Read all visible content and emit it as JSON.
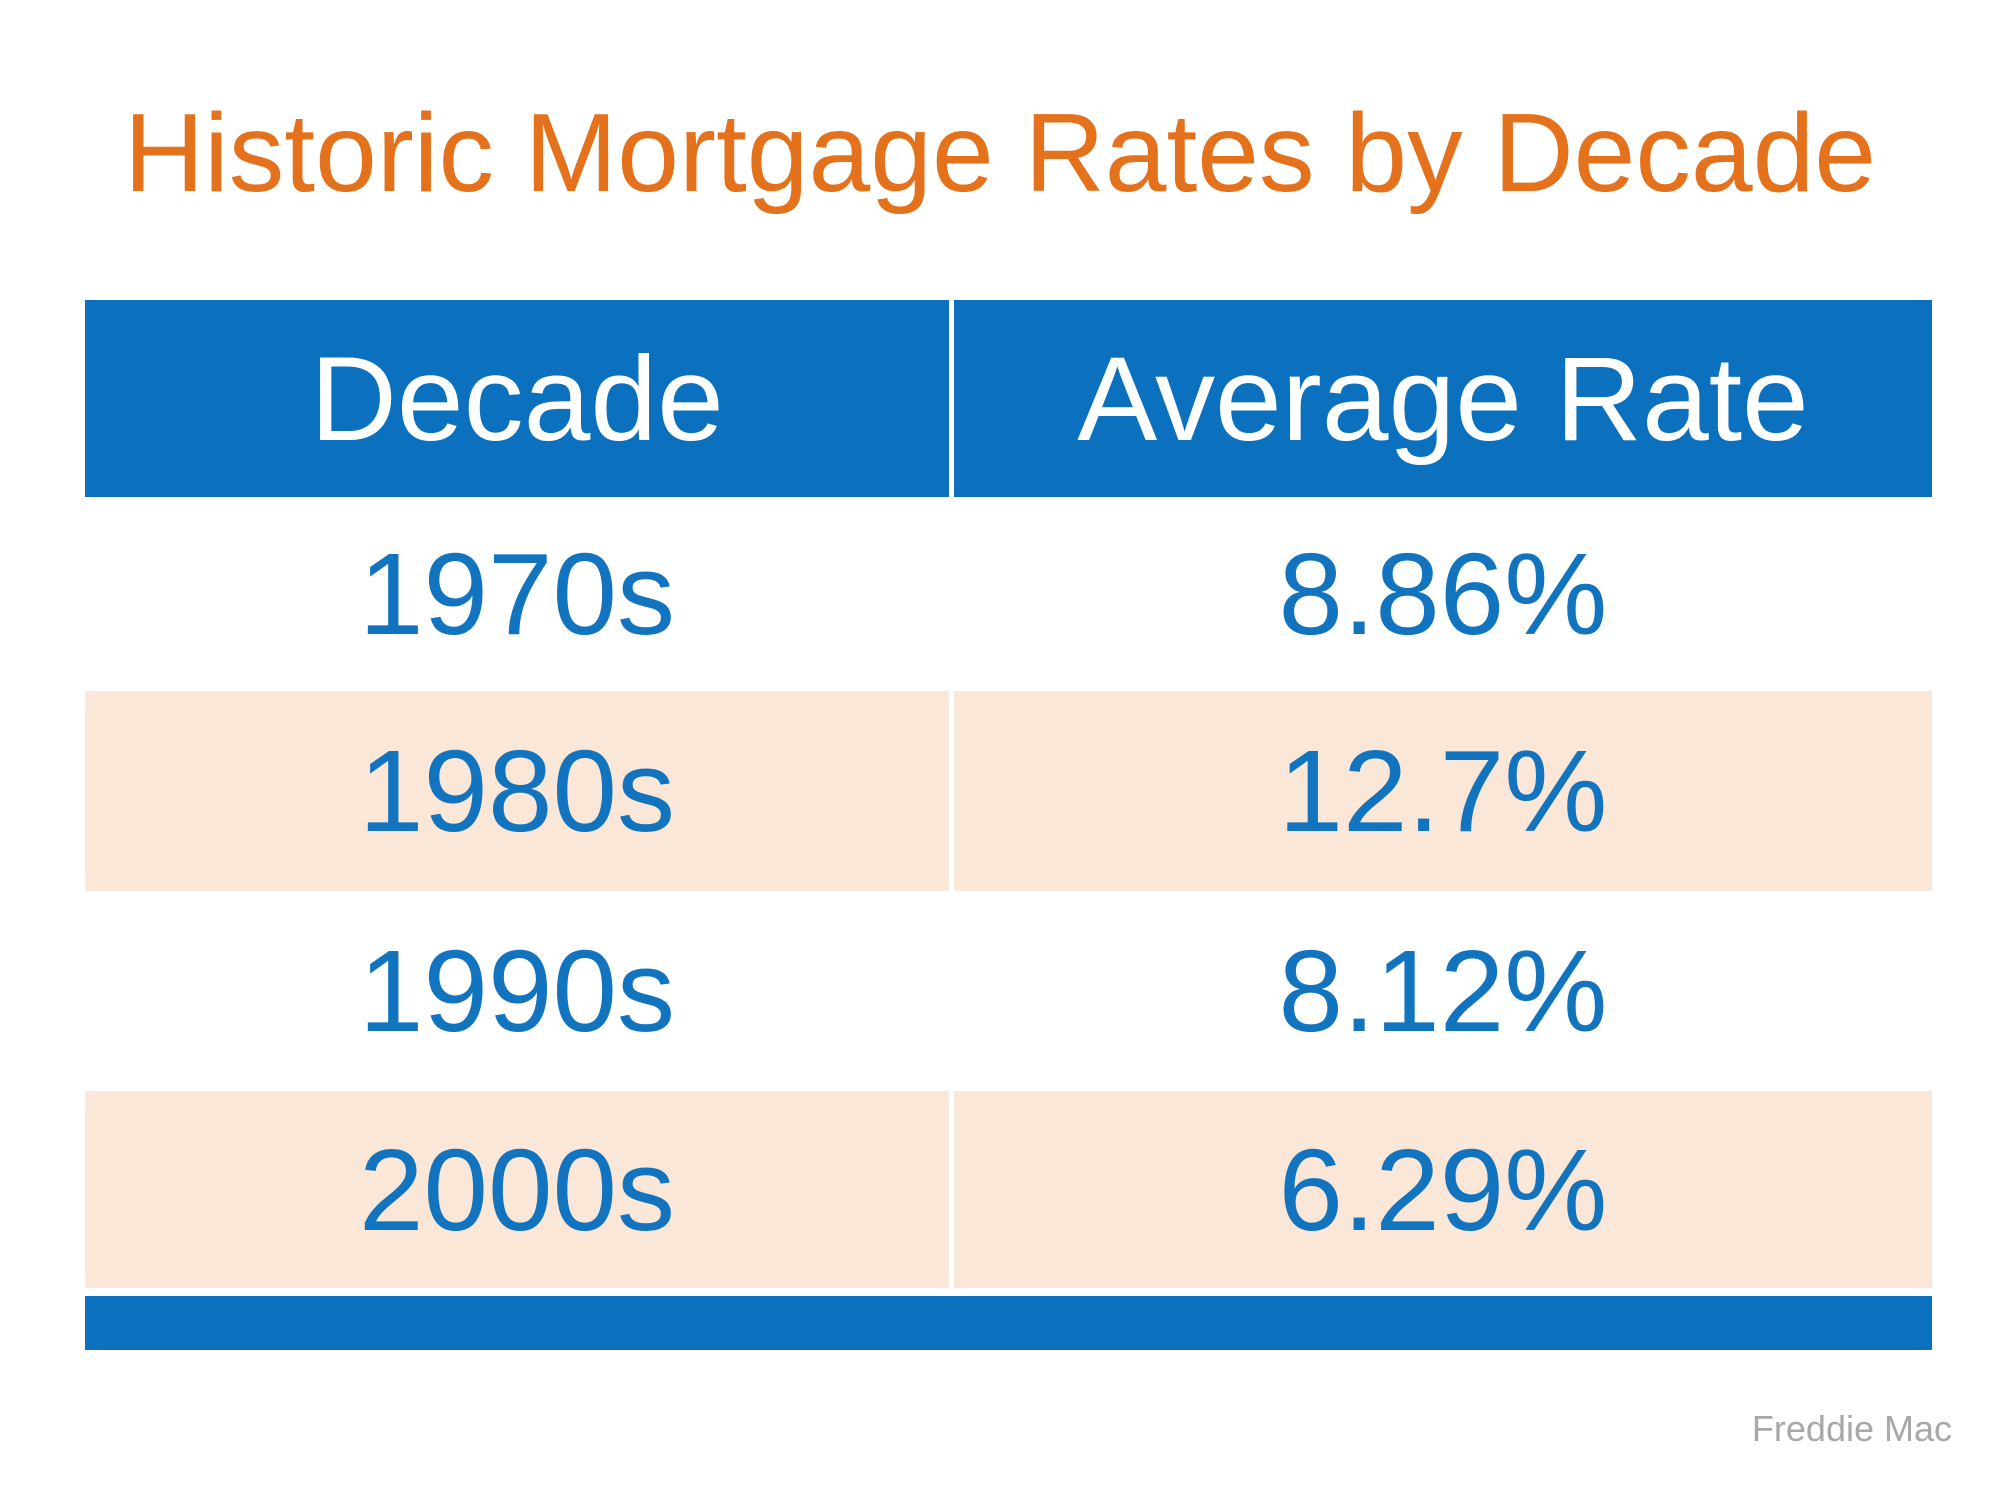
{
  "title": {
    "text": "Historic Mortgage Rates by Decade"
  },
  "table": {
    "columns": [
      "Decade",
      "Average Rate"
    ],
    "rows": [
      {
        "decade": "1970s",
        "rate": "8.86%"
      },
      {
        "decade": "1980s",
        "rate": "12.7%"
      },
      {
        "decade": "1990s",
        "rate": "8.12%"
      },
      {
        "decade": "2000s",
        "rate": "6.29%"
      }
    ]
  },
  "source": {
    "label": "Freddie Mac"
  },
  "colors": {
    "title_orange": "#E4711C",
    "accent_blue": "#0B71BE",
    "text_blue": "#1273BE",
    "row_peach": "#FBE7D7",
    "header_text": "#FFFFFF",
    "source_gray": "#A8A8A8"
  },
  "chart_data": {
    "type": "table",
    "title": "Historic Mortgage Rates by Decade",
    "columns": [
      "Decade",
      "Average Rate"
    ],
    "rows": [
      [
        "1970s",
        "8.86%"
      ],
      [
        "1980s",
        "12.7%"
      ],
      [
        "1990s",
        "8.12%"
      ],
      [
        "2000s",
        "6.29%"
      ]
    ],
    "categories": [
      "1970s",
      "1980s",
      "1990s",
      "2000s"
    ],
    "values": [
      8.86,
      12.7,
      8.12,
      6.29
    ],
    "value_unit": "%",
    "source": "Freddie Mac"
  }
}
